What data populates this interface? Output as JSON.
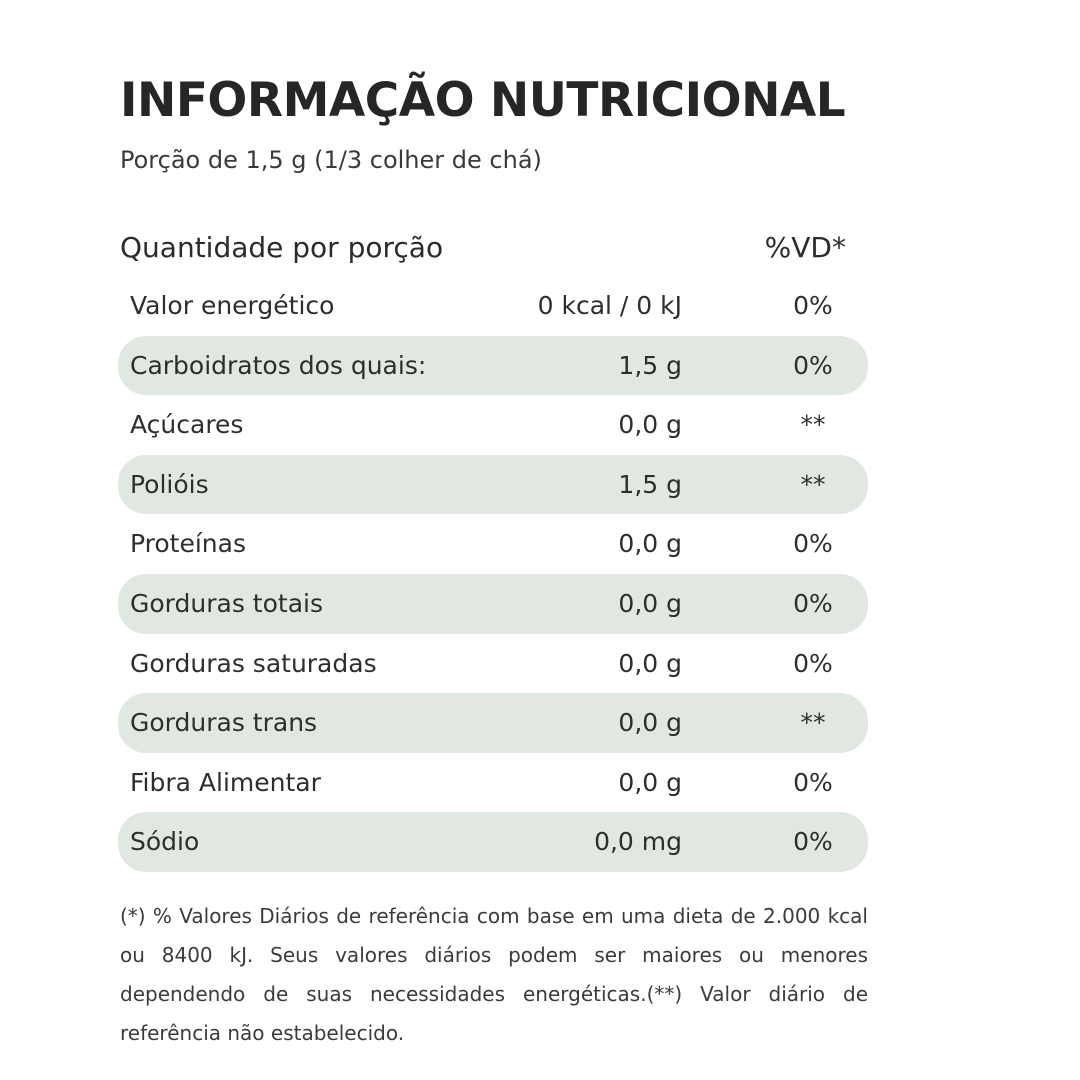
{
  "title": "INFORMAÇÃO NUTRICIONAL",
  "serving": "Porção de 1,5 g (1/3 colher de chá)",
  "table": {
    "header_label": "Quantidade por porção",
    "header_vd": "%VD*",
    "rows": [
      {
        "name": "Valor energético",
        "amount": "0 kcal / 0 kJ",
        "vd": "0%",
        "shaded": false
      },
      {
        "name": "Carboidratos dos quais:",
        "amount": "1,5 g",
        "vd": "0%",
        "shaded": true
      },
      {
        "name": "Açúcares",
        "amount": "0,0 g",
        "vd": "**",
        "shaded": false
      },
      {
        "name": "Polióis",
        "amount": "1,5 g",
        "vd": "**",
        "shaded": true
      },
      {
        "name": "Proteínas",
        "amount": "0,0 g",
        "vd": "0%",
        "shaded": false
      },
      {
        "name": "Gorduras totais",
        "amount": "0,0 g",
        "vd": "0%",
        "shaded": true
      },
      {
        "name": "Gorduras saturadas",
        "amount": "0,0 g",
        "vd": "0%",
        "shaded": false
      },
      {
        "name": "Gorduras trans",
        "amount": "0,0 g",
        "vd": "**",
        "shaded": true
      },
      {
        "name": "Fibra Alimentar",
        "amount": "0,0 g",
        "vd": "0%",
        "shaded": false
      },
      {
        "name": "Sódio",
        "amount": "0,0 mg",
        "vd": "0%",
        "shaded": true
      }
    ]
  },
  "footnote": "(*) % Valores Diários de referência com base em uma dieta de 2.000 kcal ou 8400 kJ. Seus valores diários podem ser maiores ou menores dependendo de suas necessidades energéticas.(**) Valor diário de referência não estabelecido.",
  "colors": {
    "row_shade": "#e1e8e1",
    "text": "#2b2b2b"
  }
}
